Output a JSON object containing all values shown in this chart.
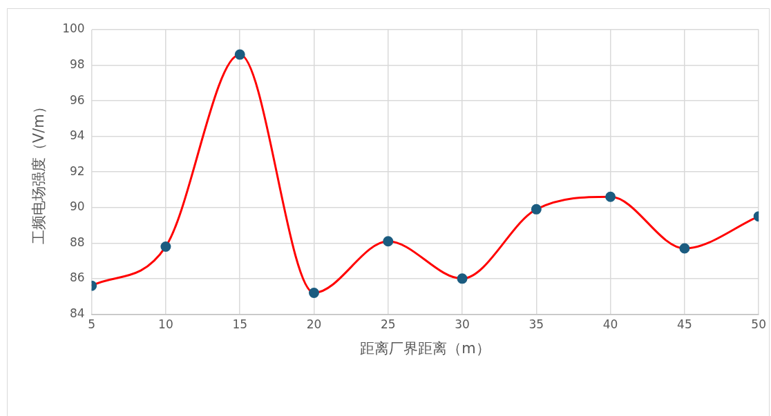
{
  "chart_data": {
    "type": "line",
    "xlabel": "距离厂界距离（m）",
    "ylabel": "工频电场强度（V/m）",
    "x": [
      5,
      10,
      15,
      20,
      25,
      30,
      35,
      40,
      45,
      50
    ],
    "series": [
      {
        "color": "#ff0000",
        "colors": [
          "#1b5c80",
          "#1b5c80",
          "#1b5c80",
          "#1b5c80",
          "#1b5c80",
          "#1b5c80",
          "#1b5c80",
          "#1b5c80",
          "#1b5c80",
          "#1b5c80"
        ],
        "values": [
          85.6,
          87.8,
          98.6,
          85.2,
          88.1,
          86.0,
          89.9,
          90.6,
          87.7,
          89.5
        ]
      }
    ],
    "xlim": [
      5,
      50
    ],
    "xticks": [
      5,
      10,
      15,
      20,
      25,
      30,
      35,
      40,
      45,
      50
    ],
    "ylim": [
      84,
      100
    ],
    "yticks": [
      84,
      86,
      88,
      90,
      92,
      94,
      96,
      98,
      100
    ],
    "grid": true,
    "legend": false,
    "marker": "circle",
    "line_style": "solid"
  }
}
